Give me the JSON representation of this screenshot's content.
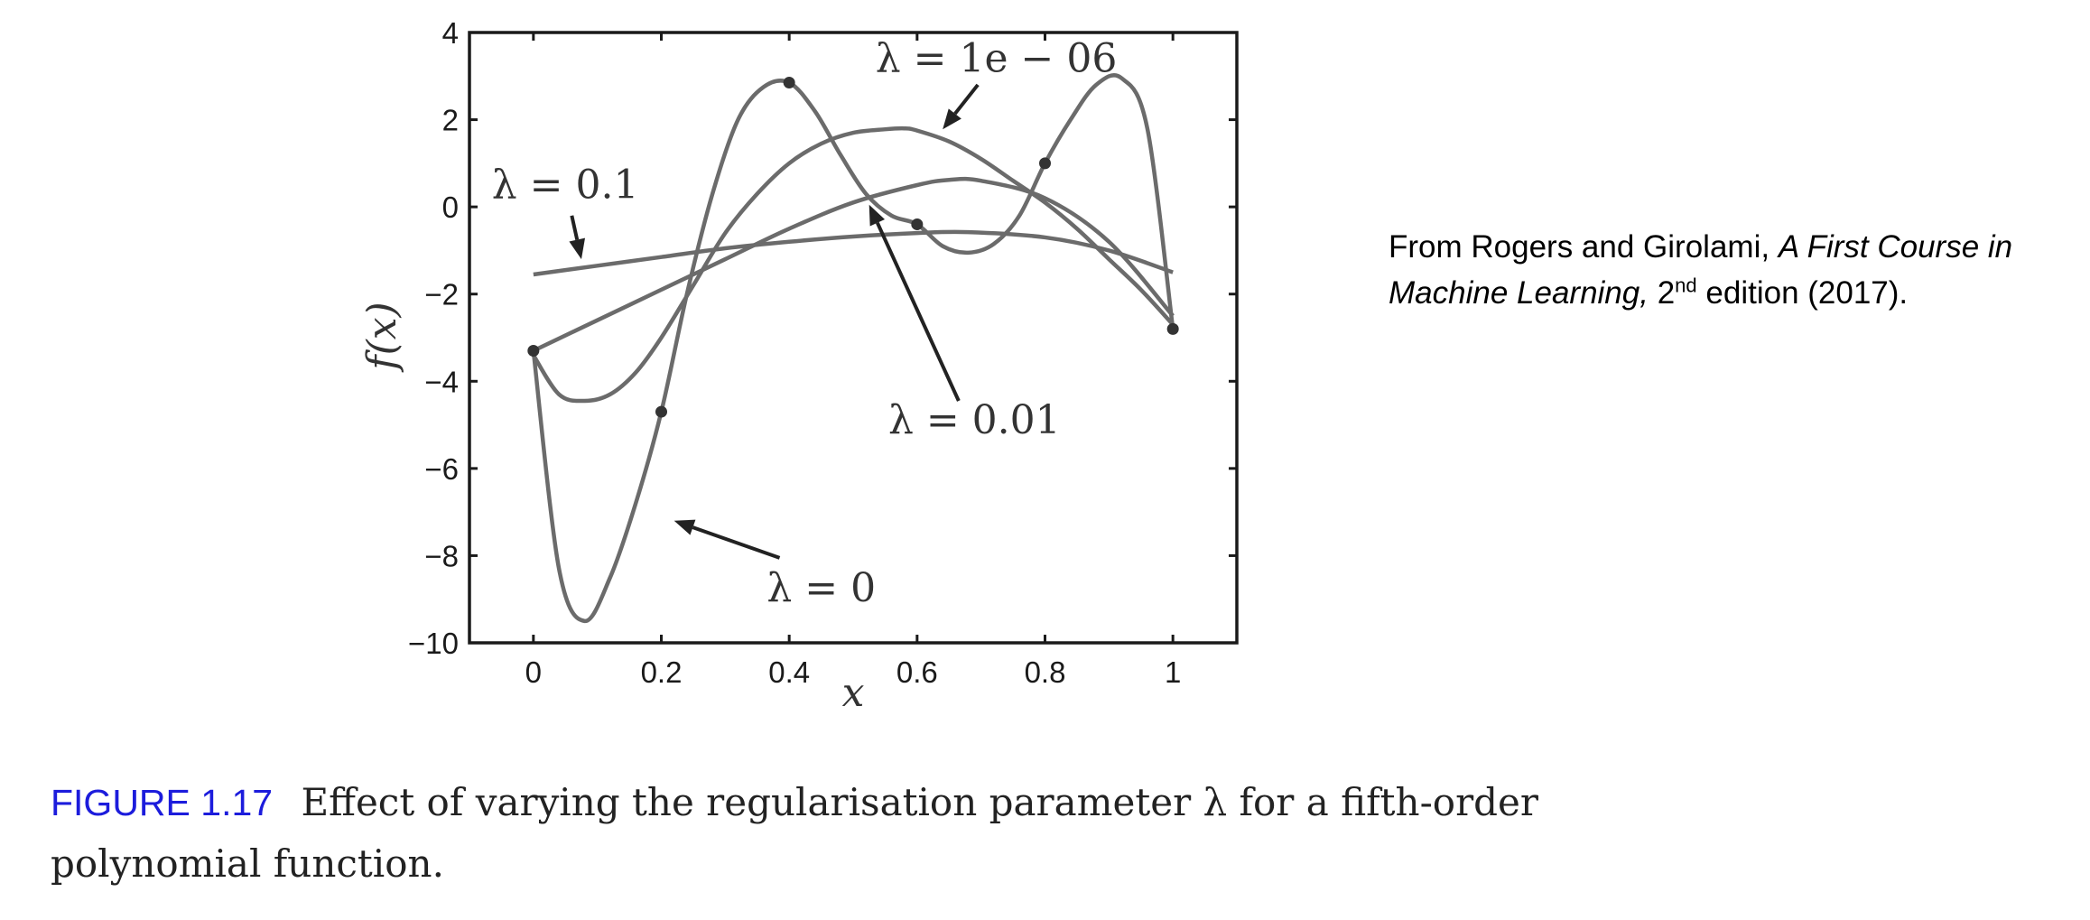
{
  "chart_data": {
    "type": "line",
    "xlabel": "x",
    "ylabel": "f(x)",
    "xlim": [
      -0.1,
      1.1
    ],
    "ylim": [
      -10,
      4
    ],
    "x_ticks": [
      "0",
      "0.2",
      "0.4",
      "0.6",
      "0.8",
      "1"
    ],
    "x_tick_values": [
      0,
      0.2,
      0.4,
      0.6,
      0.8,
      1
    ],
    "y_ticks": [
      "4",
      "2",
      "0",
      "−2",
      "−4",
      "−6",
      "−8",
      "−10"
    ],
    "y_tick_values": [
      4,
      2,
      0,
      -2,
      -4,
      -6,
      -8,
      -10
    ],
    "grid": false,
    "data_points": {
      "x": [
        0,
        0.2,
        0.4,
        0.6,
        0.8,
        1
      ],
      "y": [
        -3.3,
        -4.7,
        2.85,
        -0.4,
        1.0,
        -2.8
      ]
    },
    "series": [
      {
        "label": "λ = 0",
        "x": [
          0,
          0.04,
          0.08,
          0.12,
          0.16,
          0.2,
          0.24,
          0.28,
          0.32,
          0.36,
          0.4,
          0.44,
          0.48,
          0.52,
          0.56,
          0.6,
          0.64,
          0.68,
          0.72,
          0.76,
          0.8,
          0.84,
          0.88,
          0.92,
          0.96,
          1
        ],
        "y": [
          -3.3,
          -8.3,
          -9.5,
          -8.5,
          -6.8,
          -4.7,
          -2.0,
          0.3,
          2.0,
          2.75,
          2.85,
          2.2,
          1.2,
          0.3,
          -0.2,
          -0.4,
          -0.9,
          -1.05,
          -0.85,
          -0.2,
          1.0,
          2.0,
          2.8,
          2.95,
          1.8,
          -2.8
        ]
      },
      {
        "label": "λ = 1e − 06",
        "x": [
          0,
          0.04,
          0.08,
          0.12,
          0.16,
          0.2,
          0.25,
          0.3,
          0.35,
          0.4,
          0.45,
          0.5,
          0.55,
          0.58,
          0.6,
          0.65,
          0.7,
          0.75,
          0.8,
          0.85,
          0.9,
          0.95,
          1
        ],
        "y": [
          -3.4,
          -4.3,
          -4.45,
          -4.3,
          -3.8,
          -3.0,
          -1.8,
          -0.6,
          0.3,
          1.0,
          1.45,
          1.7,
          1.78,
          1.8,
          1.75,
          1.5,
          1.1,
          0.6,
          0.1,
          -0.5,
          -1.2,
          -1.9,
          -2.7
        ]
      },
      {
        "label": "λ = 0.01",
        "x": [
          0,
          0.1,
          0.2,
          0.3,
          0.4,
          0.5,
          0.6,
          0.65,
          0.7,
          0.8,
          0.9,
          1
        ],
        "y": [
          -3.3,
          -2.6,
          -1.9,
          -1.2,
          -0.5,
          0.1,
          0.5,
          0.62,
          0.6,
          0.2,
          -0.8,
          -2.5
        ]
      },
      {
        "label": "λ = 0.1",
        "x": [
          0,
          0.1,
          0.2,
          0.3,
          0.4,
          0.5,
          0.6,
          0.68,
          0.8,
          0.9,
          1
        ],
        "y": [
          -1.55,
          -1.35,
          -1.15,
          -0.95,
          -0.8,
          -0.68,
          -0.6,
          -0.58,
          -0.7,
          -1.0,
          -1.5
        ]
      }
    ],
    "annotations": [
      {
        "text": "λ = 1e − 06",
        "target": "λ = 1e − 06"
      },
      {
        "text": "λ = 0.1",
        "target": "λ = 0.1"
      },
      {
        "text": "λ = 0.01",
        "target": "λ = 0.01"
      },
      {
        "text": "λ = 0",
        "target": "λ = 0"
      }
    ]
  },
  "source_note": {
    "prefix": "From Rogers and Girolami,",
    "book_title": "A First Course in Machine Learning,",
    "edition_number": "2",
    "edition_suffix": "nd",
    "rest": "edition (2017)."
  },
  "caption": {
    "figure_number": "FIGURE 1.17",
    "text": "Effect of varying the regularisation parameter λ for a fifth-order polynomial function."
  }
}
